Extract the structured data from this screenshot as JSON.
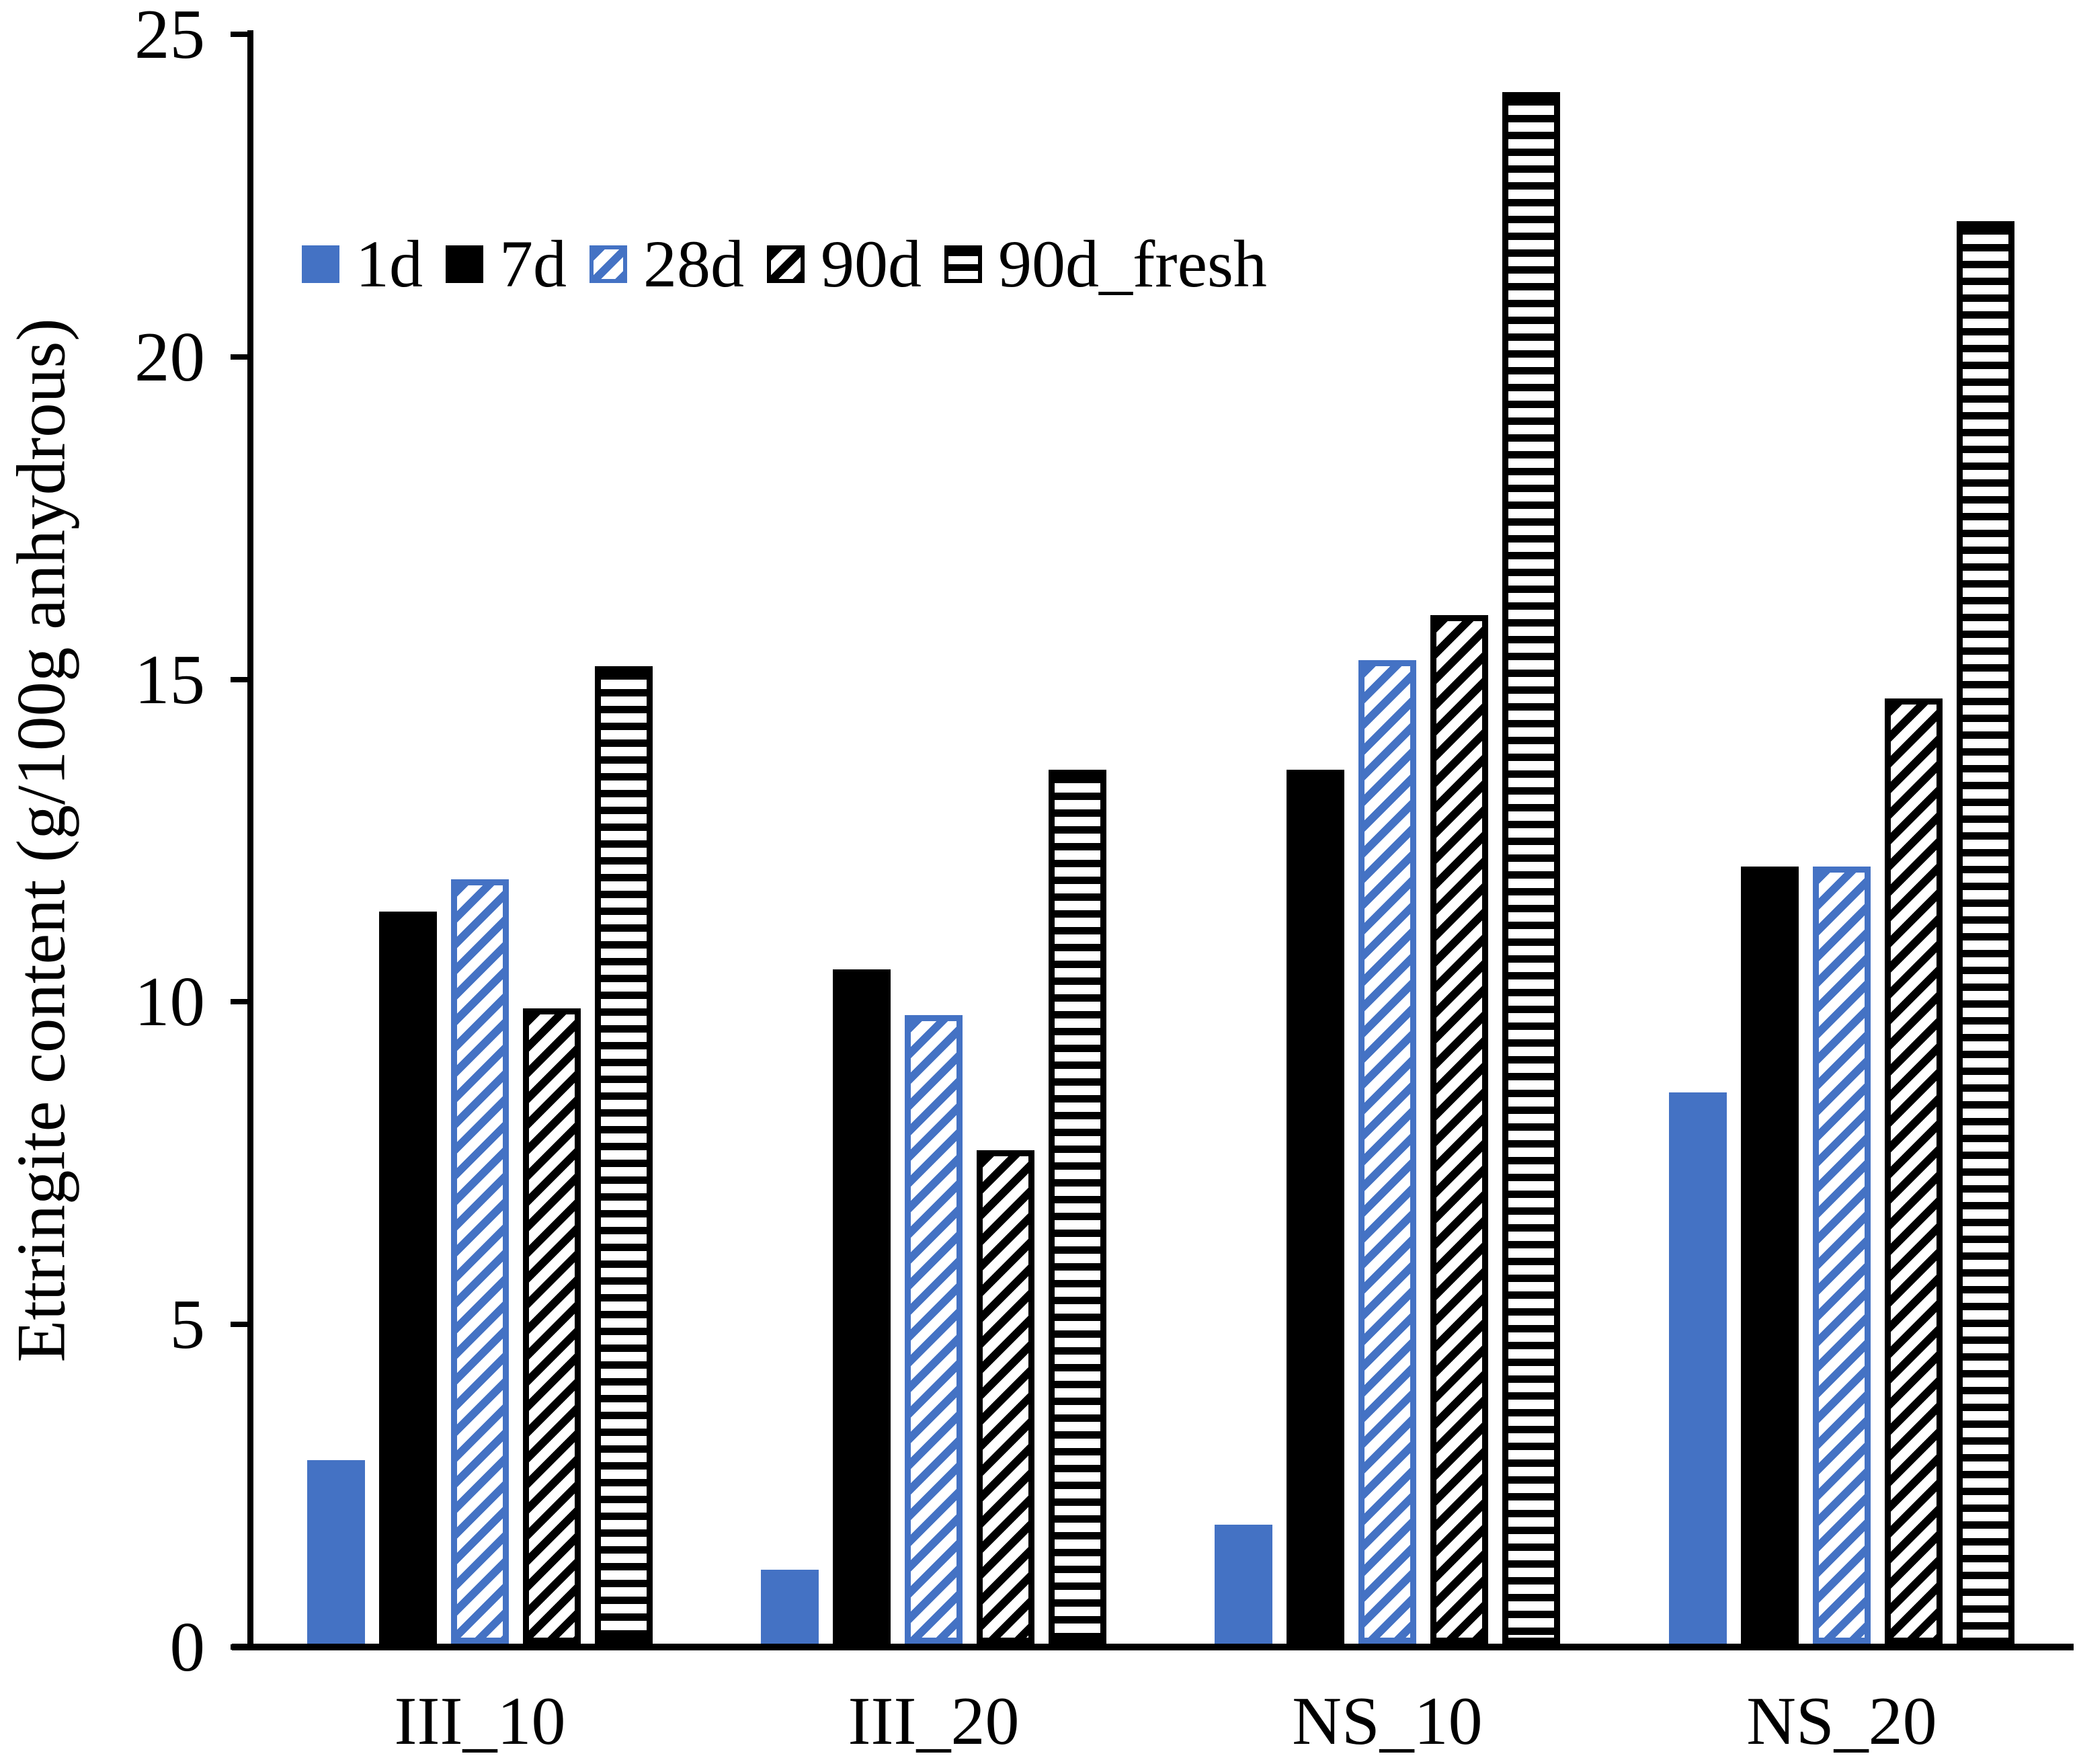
{
  "figure": {
    "background": "#ffffff"
  },
  "colors": {
    "series_blue": "#4472C4",
    "series_black": "#000000"
  },
  "y_axis": {
    "title": "Ettringite content (g/100g anhydrous)",
    "tick_labels": [
      "0",
      "5",
      "10",
      "15",
      "20",
      "25"
    ],
    "tick_values": [
      0,
      5,
      10,
      15,
      20,
      25
    ],
    "min": 0,
    "max": 25
  },
  "x_axis": {
    "categories": [
      "III_10",
      "III_20",
      "NS_10",
      "NS_20"
    ]
  },
  "legend": {
    "items": [
      {
        "label": "1d",
        "pattern": "solid-blue"
      },
      {
        "label": "7d",
        "pattern": "solid-black"
      },
      {
        "label": "28d",
        "pattern": "diag-blue"
      },
      {
        "label": "90d",
        "pattern": "diag-black"
      },
      {
        "label": "90d_fresh",
        "pattern": "hstripe-black"
      }
    ]
  },
  "chart_data": {
    "type": "bar",
    "title": "",
    "xlabel": "",
    "ylabel": "Ettringite content (g/100g anhydrous)",
    "ylim": [
      0,
      25
    ],
    "grid": false,
    "legend_position": "top-left-inside",
    "categories": [
      "III_10",
      "III_20",
      "NS_10",
      "NS_20"
    ],
    "series": [
      {
        "name": "1d",
        "pattern": "solid-blue",
        "color": "#4472C4",
        "values": [
          2.9,
          1.2,
          1.9,
          8.6
        ]
      },
      {
        "name": "7d",
        "pattern": "solid-black",
        "color": "#000000",
        "values": [
          11.4,
          10.5,
          13.6,
          12.1
        ]
      },
      {
        "name": "28d",
        "pattern": "diag-blue",
        "color": "#4472C4",
        "values": [
          11.9,
          9.8,
          15.3,
          12.1
        ]
      },
      {
        "name": "90d",
        "pattern": "diag-black",
        "color": "#000000",
        "values": [
          9.9,
          7.7,
          16.0,
          14.7
        ]
      },
      {
        "name": "90d_fresh",
        "pattern": "hstripe-black",
        "color": "#000000",
        "values": [
          15.2,
          13.6,
          24.1,
          22.1
        ]
      }
    ]
  }
}
